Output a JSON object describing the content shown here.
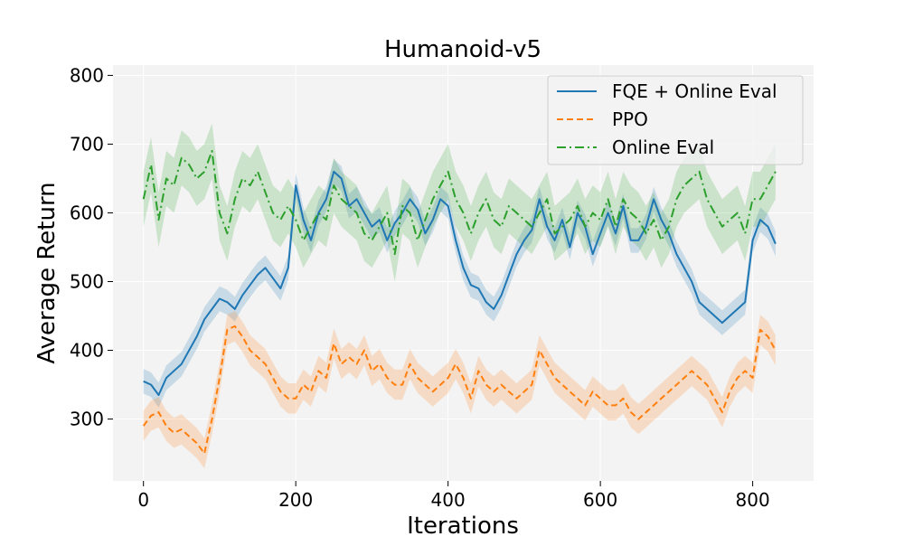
{
  "chart_data": {
    "type": "line",
    "title": "Humanoid-v5",
    "xlabel": "Iterations",
    "ylabel": "Average Return",
    "xlim": [
      -40,
      880
    ],
    "ylim": [
      210,
      815
    ],
    "xticks": [
      0,
      200,
      400,
      600,
      800
    ],
    "yticks": [
      300,
      400,
      500,
      600,
      700,
      800
    ],
    "grid": true,
    "background": "#f3f3f3",
    "legend_position": "top-right",
    "series": [
      {
        "name": "FQE + Online Eval",
        "color": "#1f77b4",
        "style": "solid",
        "band": 18,
        "x": [
          0,
          10,
          20,
          30,
          40,
          50,
          60,
          70,
          80,
          90,
          100,
          110,
          120,
          130,
          140,
          150,
          160,
          170,
          180,
          190,
          200,
          210,
          220,
          230,
          240,
          250,
          260,
          270,
          280,
          290,
          300,
          310,
          320,
          330,
          340,
          350,
          360,
          370,
          380,
          390,
          400,
          410,
          420,
          430,
          440,
          450,
          460,
          470,
          480,
          490,
          500,
          510,
          520,
          530,
          540,
          550,
          560,
          570,
          580,
          590,
          600,
          610,
          620,
          630,
          640,
          650,
          660,
          670,
          680,
          690,
          700,
          710,
          720,
          730,
          740,
          750,
          760,
          770,
          780,
          790,
          800,
          810,
          820,
          830
        ],
        "y": [
          355,
          350,
          335,
          360,
          370,
          380,
          400,
          420,
          445,
          460,
          475,
          470,
          460,
          480,
          495,
          510,
          520,
          505,
          490,
          520,
          640,
          590,
          560,
          600,
          620,
          660,
          650,
          610,
          620,
          600,
          580,
          590,
          560,
          585,
          600,
          620,
          605,
          570,
          590,
          620,
          610,
          560,
          520,
          495,
          490,
          470,
          460,
          480,
          510,
          540,
          560,
          575,
          620,
          580,
          560,
          590,
          550,
          600,
          580,
          540,
          570,
          600,
          570,
          610,
          560,
          560,
          580,
          620,
          590,
          570,
          540,
          520,
          500,
          470,
          460,
          450,
          440,
          450,
          460,
          470,
          560,
          590,
          580,
          555
        ]
      },
      {
        "name": "PPO",
        "color": "#ff7f0e",
        "style": "dashed",
        "band": 22,
        "x": [
          0,
          10,
          20,
          30,
          40,
          50,
          60,
          70,
          80,
          90,
          100,
          110,
          120,
          130,
          140,
          150,
          160,
          170,
          180,
          190,
          200,
          210,
          220,
          230,
          240,
          250,
          260,
          270,
          280,
          290,
          300,
          310,
          320,
          330,
          340,
          350,
          360,
          370,
          380,
          390,
          400,
          410,
          420,
          430,
          440,
          450,
          460,
          470,
          480,
          490,
          500,
          510,
          520,
          530,
          540,
          550,
          560,
          570,
          580,
          590,
          600,
          610,
          620,
          630,
          640,
          650,
          660,
          670,
          680,
          690,
          700,
          710,
          720,
          730,
          740,
          750,
          760,
          770,
          780,
          790,
          800,
          810,
          820,
          830
        ],
        "y": [
          290,
          305,
          310,
          290,
          280,
          285,
          275,
          265,
          250,
          300,
          360,
          430,
          435,
          420,
          400,
          390,
          380,
          360,
          340,
          330,
          330,
          350,
          340,
          370,
          360,
          410,
          380,
          390,
          380,
          400,
          370,
          380,
          360,
          350,
          350,
          380,
          360,
          350,
          340,
          350,
          360,
          380,
          360,
          330,
          370,
          350,
          340,
          350,
          340,
          330,
          340,
          350,
          400,
          380,
          360,
          350,
          340,
          330,
          320,
          340,
          330,
          320,
          320,
          330,
          310,
          300,
          310,
          320,
          330,
          340,
          350,
          360,
          370,
          360,
          350,
          330,
          310,
          340,
          360,
          370,
          360,
          430,
          420,
          400
        ]
      },
      {
        "name": "Online Eval",
        "color": "#2ca02c",
        "style": "dashdot",
        "band": 40,
        "x": [
          0,
          10,
          20,
          30,
          40,
          50,
          60,
          70,
          80,
          90,
          100,
          110,
          120,
          130,
          140,
          150,
          160,
          170,
          180,
          190,
          200,
          210,
          220,
          230,
          240,
          250,
          260,
          270,
          280,
          290,
          300,
          310,
          320,
          330,
          340,
          350,
          360,
          370,
          380,
          390,
          400,
          410,
          420,
          430,
          440,
          450,
          460,
          470,
          480,
          490,
          500,
          510,
          520,
          530,
          540,
          550,
          560,
          570,
          580,
          590,
          600,
          610,
          620,
          630,
          640,
          650,
          660,
          670,
          680,
          690,
          700,
          710,
          720,
          730,
          740,
          750,
          760,
          770,
          780,
          790,
          800,
          810,
          820,
          830
        ],
        "y": [
          620,
          670,
          590,
          650,
          640,
          680,
          670,
          650,
          660,
          690,
          600,
          570,
          620,
          650,
          640,
          660,
          630,
          600,
          590,
          610,
          590,
          560,
          580,
          600,
          590,
          640,
          620,
          610,
          600,
          570,
          560,
          580,
          600,
          540,
          610,
          600,
          560,
          590,
          620,
          640,
          660,
          620,
          600,
          570,
          600,
          620,
          590,
          580,
          610,
          600,
          590,
          580,
          600,
          620,
          570,
          580,
          590,
          610,
          580,
          600,
          590,
          620,
          580,
          620,
          600,
          590,
          570,
          590,
          560,
          580,
          620,
          640,
          650,
          660,
          620,
          600,
          580,
          590,
          600,
          570,
          620,
          620,
          640,
          660
        ]
      }
    ]
  }
}
